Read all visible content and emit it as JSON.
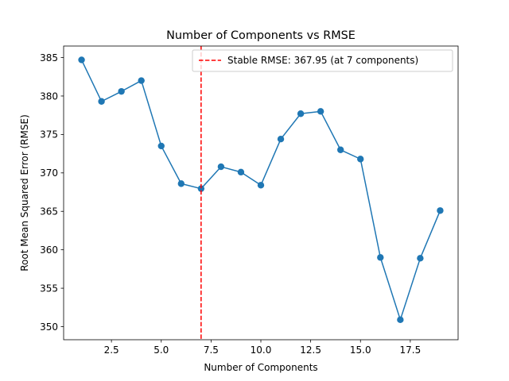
{
  "chart_data": {
    "type": "line",
    "title": "Number of Components vs RMSE",
    "xlabel": "Number of Components",
    "ylabel": "Root Mean Squared Error (RMSE)",
    "xlim": [
      0.1,
      19.9
    ],
    "ylim": [
      348.3,
      386.5
    ],
    "x_ticks": [
      2.5,
      5.0,
      7.5,
      10.0,
      12.5,
      15.0,
      17.5
    ],
    "x_tick_labels": [
      "2.5",
      "5.0",
      "7.5",
      "10.0",
      "12.5",
      "15.0",
      "17.5"
    ],
    "y_ticks": [
      350,
      355,
      360,
      365,
      370,
      375,
      380,
      385
    ],
    "y_tick_labels": [
      "350",
      "355",
      "360",
      "365",
      "370",
      "375",
      "380",
      "385"
    ],
    "grid": false,
    "legend_position": "top-right",
    "series": [
      {
        "color": "#1f77b4",
        "marker": "circle",
        "x": [
          1,
          2,
          3,
          4,
          5,
          6,
          7,
          8,
          9,
          10,
          11,
          12,
          13,
          14,
          15,
          16,
          17,
          18,
          19
        ],
        "values": [
          384.7,
          379.3,
          380.6,
          382.0,
          373.5,
          368.6,
          367.95,
          370.8,
          370.1,
          368.4,
          374.4,
          377.7,
          378.0,
          373.0,
          371.8,
          359.0,
          350.9,
          358.9,
          365.1
        ]
      }
    ],
    "annotations": [
      {
        "type": "vline",
        "x": 7,
        "color": "#ff0000",
        "style": "dashed",
        "label": "Stable RMSE: 367.95 (at 7 components)"
      }
    ]
  }
}
